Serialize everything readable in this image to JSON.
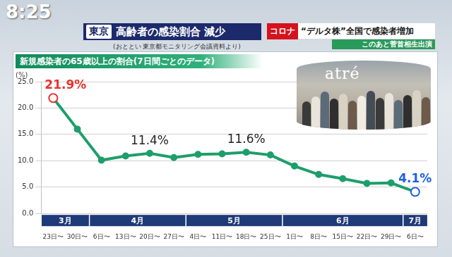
{
  "header": {
    "time": "8:25",
    "region": "東京",
    "headline": "高齢者の感染割合 減少",
    "source": "(おととい 東京都モニタリング会議資料より)",
    "topic_tag": "コロナ",
    "topic": "“デルタ株”全国で感染者増加",
    "next": "このあと菅首相生出演"
  },
  "photo": {
    "sign": "atré"
  },
  "chart_data": {
    "type": "line",
    "title": "新規感染者の65歳以上の割合(7日間ごとのデータ)",
    "y_unit": "(%)",
    "categories": [
      "23日〜",
      "30日〜",
      "6日〜",
      "13日〜",
      "20日〜",
      "27日〜",
      "4日〜",
      "11日〜",
      "18日〜",
      "25日〜",
      "1日〜",
      "8日〜",
      "15日〜",
      "22日〜",
      "29日〜",
      "6日〜"
    ],
    "month_groups": [
      {
        "label": "3月",
        "count": 2
      },
      {
        "label": "4月",
        "count": 4
      },
      {
        "label": "5月",
        "count": 4
      },
      {
        "label": "6月",
        "count": 5
      },
      {
        "label": "7月",
        "count": 1
      }
    ],
    "values": [
      21.9,
      16.0,
      10.1,
      10.9,
      11.4,
      10.6,
      11.2,
      11.3,
      11.6,
      11.1,
      9.0,
      7.4,
      6.6,
      5.7,
      5.8,
      4.1
    ],
    "color": "#1e9e6a",
    "colors": [
      "#e8332e",
      "#1e9e6a",
      "#1e9e6a",
      "#1e9e6a",
      "#1e9e6a",
      "#1e9e6a",
      "#1e9e6a",
      "#1e9e6a",
      "#1e9e6a",
      "#1e9e6a",
      "#1e9e6a",
      "#1e9e6a",
      "#1e9e6a",
      "#1e9e6a",
      "#1e9e6a",
      "#1f5fe0"
    ],
    "marker": "circle",
    "annotations": [
      {
        "index": 0,
        "text": "21.9%",
        "color": "#e8332e"
      },
      {
        "index": 4,
        "text": "11.4%",
        "color": "#222222"
      },
      {
        "index": 8,
        "text": "11.6%",
        "color": "#222222"
      },
      {
        "index": 15,
        "text": "4.1%",
        "color": "#1f5fe0"
      }
    ],
    "ylim": [
      0,
      25
    ],
    "yticks": [
      {
        "value": 0,
        "label": "0.0"
      },
      {
        "value": 5,
        "label": "5.0"
      },
      {
        "value": 10,
        "label": "10.0"
      },
      {
        "value": 15,
        "label": "15.0"
      },
      {
        "value": 20,
        "label": "20.0"
      },
      {
        "value": 25,
        "label": "25.0"
      }
    ],
    "grid": true
  }
}
